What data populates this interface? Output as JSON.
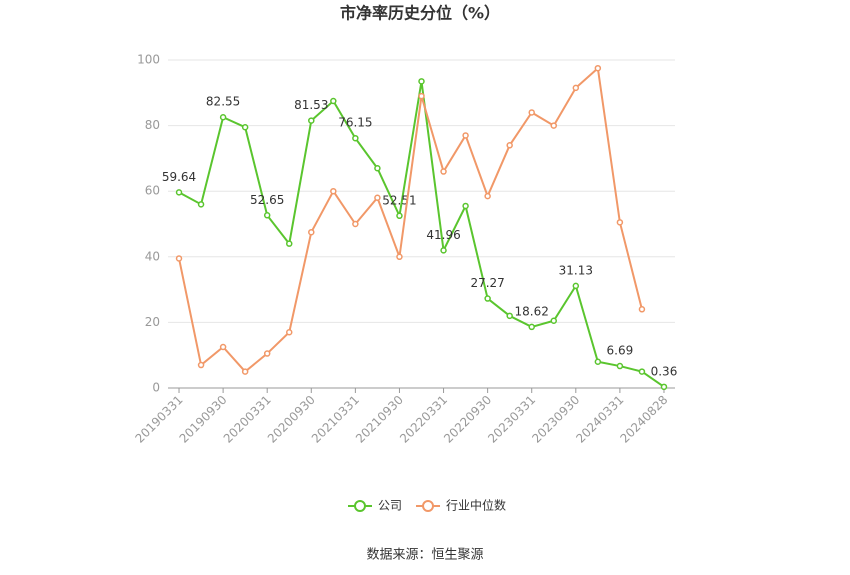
{
  "chart_data": {
    "type": "line",
    "title": "市净率历史分位（%）",
    "categories": [
      "20190331",
      null,
      "20190930",
      null,
      "20200331",
      null,
      "20200930",
      null,
      "20210331",
      null,
      "20210930",
      null,
      "20220331",
      null,
      "20220930",
      null,
      "20230331",
      null,
      "20230930",
      null,
      "20240331",
      null,
      "20240828"
    ],
    "series": [
      {
        "name": "公司",
        "color": "#5ac52e",
        "values": [
          59.64,
          56,
          82.55,
          79.5,
          52.65,
          44,
          81.53,
          87.5,
          76.15,
          67,
          52.51,
          93.5,
          41.96,
          55.5,
          27.27,
          22,
          18.62,
          20.5,
          31.13,
          8,
          6.69,
          5,
          0.36
        ],
        "value_labels": [
          "59.64",
          null,
          "82.55",
          null,
          "52.65",
          null,
          "81.53",
          null,
          "76.15",
          null,
          "52.51",
          null,
          "41.96",
          null,
          "27.27",
          null,
          "18.62",
          null,
          "31.13",
          null,
          "6.69",
          null,
          "0.36"
        ]
      },
      {
        "name": "行业中位数",
        "color": "#f19868",
        "values": [
          39.5,
          7,
          12.5,
          5,
          10.5,
          17,
          47.5,
          60,
          50,
          58,
          40,
          89,
          66,
          77,
          58.5,
          74,
          84,
          80,
          91.5,
          97.5,
          50.5,
          24,
          null
        ]
      }
    ],
    "ylim": [
      0,
      100
    ],
    "yticks": [
      0,
      20,
      40,
      60,
      80,
      100
    ],
    "grid": true,
    "source": "数据来源：恒生聚源"
  }
}
